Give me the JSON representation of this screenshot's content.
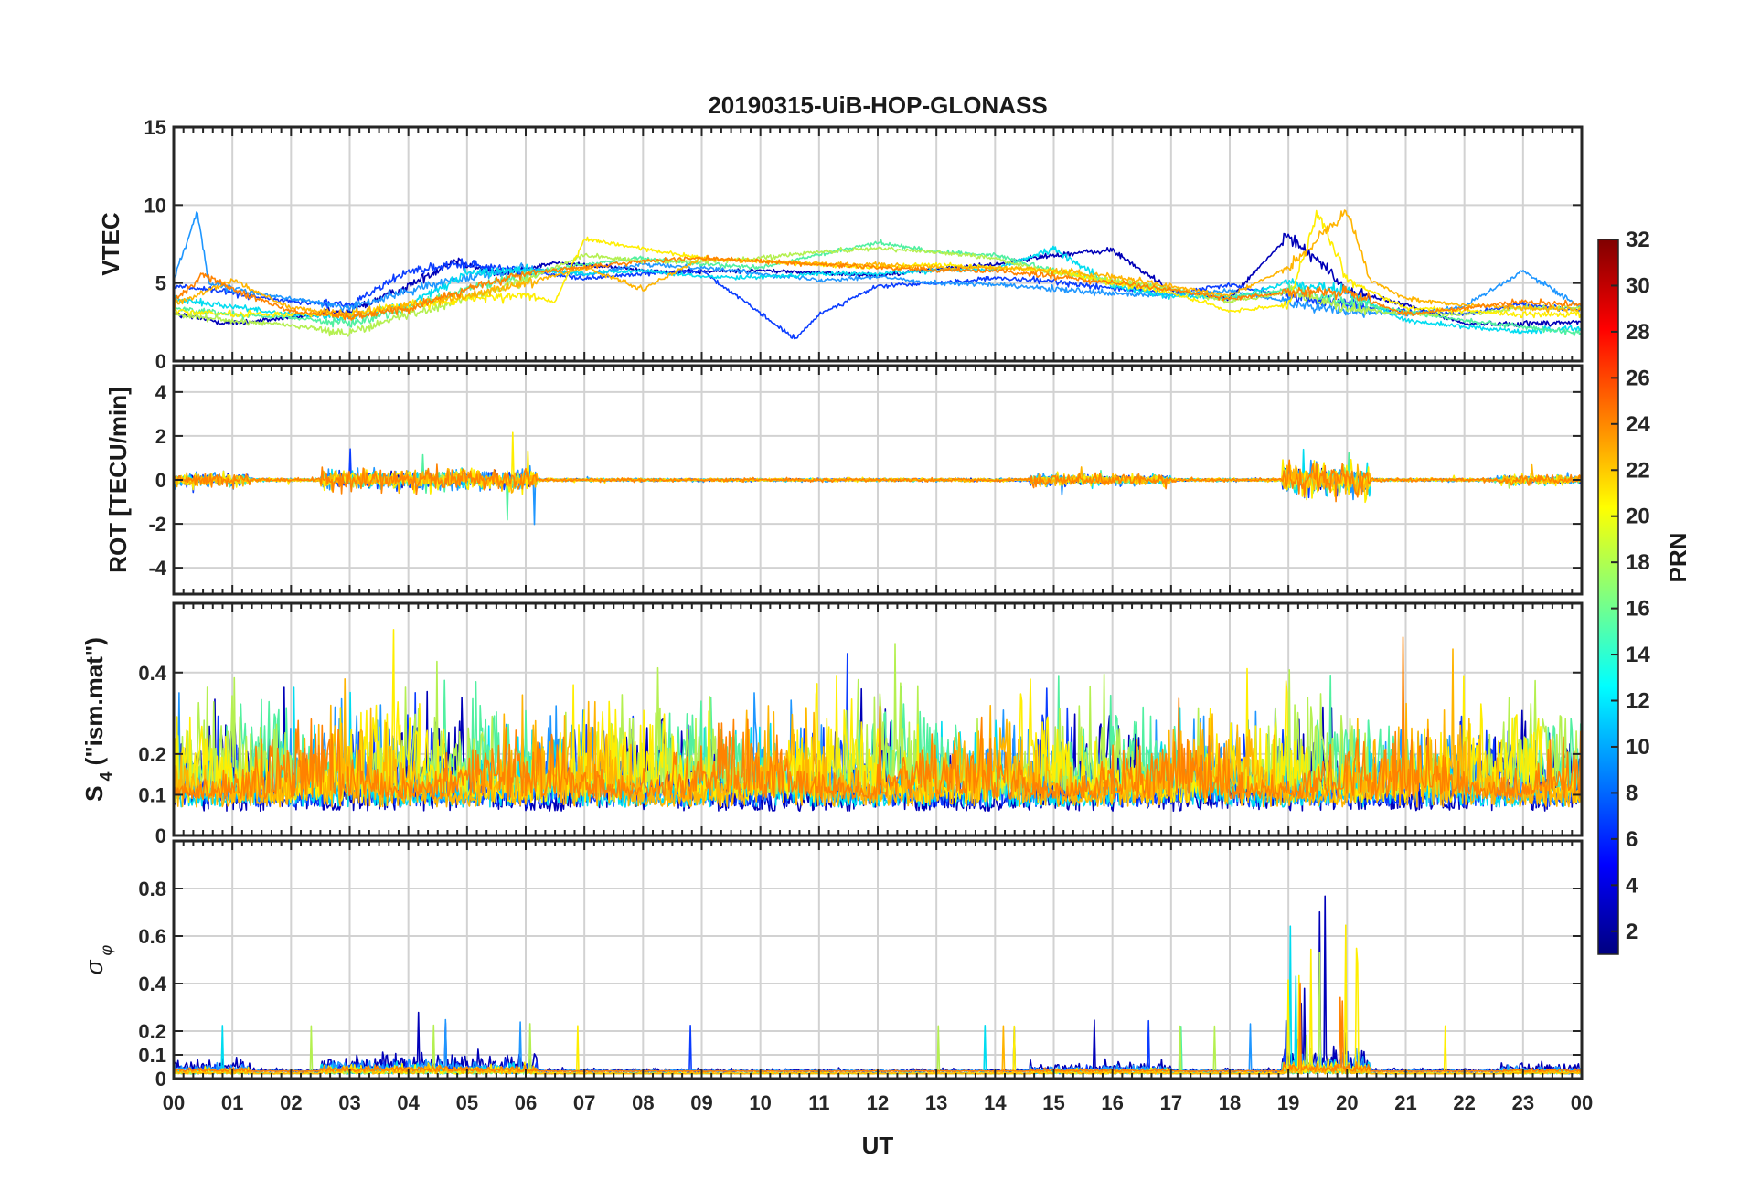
{
  "chart_data": {
    "type": "line",
    "title": "20190315-UiB-HOP-GLONASS",
    "xlabel": "UT",
    "x_ticks": [
      "00",
      "01",
      "02",
      "03",
      "04",
      "05",
      "06",
      "07",
      "08",
      "09",
      "10",
      "11",
      "12",
      "13",
      "14",
      "15",
      "16",
      "17",
      "18",
      "19",
      "20",
      "21",
      "22",
      "23",
      "00"
    ],
    "xlim": [
      0,
      24
    ],
    "grid": true,
    "panels": [
      {
        "name": "vtec",
        "ylabel": "VTEC",
        "ylim": [
          0,
          15
        ],
        "y_ticks": [
          "0",
          "5",
          "10",
          "15"
        ],
        "y_tick_values": [
          0,
          5,
          10,
          15
        ]
      },
      {
        "name": "rot",
        "ylabel": "ROT [TECU/min]",
        "ylim": [
          -5.2,
          5.2
        ],
        "y_ticks": [
          "-4",
          "-2",
          "0",
          "2",
          "4"
        ],
        "y_tick_values": [
          -4,
          -2,
          0,
          2,
          4
        ]
      },
      {
        "name": "s4",
        "ylabel_main": "S",
        "ylabel_sub": "4",
        "ylabel_rest": " (\"ism.mat\")",
        "ylim": [
          0,
          0.57
        ],
        "y_ticks": [
          "0",
          "0.1",
          "0.2",
          "0.4"
        ],
        "y_tick_values": [
          0,
          0.1,
          0.2,
          0.4
        ]
      },
      {
        "name": "sigma_phi",
        "ylabel_main": "σ",
        "ylabel_sub": "φ",
        "ylim": [
          0,
          1.0
        ],
        "y_ticks": [
          "0",
          "0.1",
          "0.2",
          "0.4",
          "0.6",
          "0.8"
        ],
        "y_tick_values": [
          0,
          0.1,
          0.2,
          0.4,
          0.6,
          0.8
        ]
      }
    ],
    "colorbar": {
      "label": "PRN",
      "range": [
        1,
        32
      ],
      "ticks": [
        "2",
        "4",
        "6",
        "8",
        "10",
        "12",
        "14",
        "16",
        "18",
        "20",
        "22",
        "24",
        "26",
        "28",
        "30",
        "32"
      ],
      "tick_values": [
        2,
        4,
        6,
        8,
        10,
        12,
        14,
        16,
        18,
        20,
        22,
        24,
        26,
        28,
        30,
        32
      ],
      "colormap": "jet"
    },
    "series": [
      {
        "prn": 2,
        "color": "#0000b8",
        "vtec_knots": [
          [
            0,
            3.0
          ],
          [
            1,
            2.4
          ],
          [
            2,
            2.8
          ],
          [
            3,
            3.2
          ],
          [
            4,
            4.8
          ],
          [
            4.8,
            6.5
          ],
          [
            5.5,
            5.6
          ],
          [
            6.5,
            6.3
          ],
          [
            7.5,
            6.0
          ],
          [
            8.5,
            5.7
          ],
          [
            10,
            5.8
          ],
          [
            12,
            5.5
          ],
          [
            13,
            5.9
          ],
          [
            14,
            6.2
          ],
          [
            15,
            6.8
          ],
          [
            16,
            7.1
          ],
          [
            17,
            4.5
          ],
          [
            18,
            4.0
          ],
          [
            19,
            8.0
          ],
          [
            19.5,
            6.5
          ],
          [
            20,
            4.5
          ],
          [
            21,
            3.6
          ],
          [
            22,
            2.4
          ],
          [
            23,
            2.4
          ],
          [
            24,
            2.5
          ]
        ],
        "rot_amp": 0.25,
        "s4_base": 0.06,
        "s4_act": 0.18,
        "sp_base": 0.03,
        "sp_act": 0.1
      },
      {
        "prn": 5,
        "color": "#0a3cff",
        "vtec_knots": [
          [
            0,
            4.8
          ],
          [
            1,
            4.4
          ],
          [
            2,
            3.8
          ],
          [
            3,
            3.6
          ],
          [
            4,
            5.8
          ],
          [
            5,
            6.2
          ],
          [
            6,
            5.8
          ],
          [
            7,
            5.3
          ],
          [
            8,
            5.6
          ],
          [
            9,
            5.8
          ],
          [
            10.6,
            1.4
          ],
          [
            11,
            3.0
          ],
          [
            12,
            4.8
          ],
          [
            13,
            5.0
          ],
          [
            14,
            5.3
          ],
          [
            15,
            5.1
          ],
          [
            16,
            4.7
          ],
          [
            17,
            4.3
          ],
          [
            18,
            4.9
          ],
          [
            19,
            4.2
          ],
          [
            20,
            3.6
          ],
          [
            21,
            3.2
          ],
          [
            22,
            3.0
          ],
          [
            23,
            3.6
          ],
          [
            24,
            3.3
          ]
        ],
        "rot_amp": 0.3,
        "s4_base": 0.07,
        "s4_act": 0.15,
        "sp_base": 0.02,
        "sp_act": 0.07
      },
      {
        "prn": 9,
        "color": "#1e96ff",
        "vtec_knots": [
          [
            0,
            5.2
          ],
          [
            0.4,
            9.6
          ],
          [
            0.6,
            5.0
          ],
          [
            1,
            4.6
          ],
          [
            2,
            4.0
          ],
          [
            3,
            3.4
          ],
          [
            4,
            4.5
          ],
          [
            5,
            5.4
          ],
          [
            6,
            6.0
          ],
          [
            7,
            5.5
          ],
          [
            8,
            6.2
          ],
          [
            9,
            6.0
          ],
          [
            10,
            5.6
          ],
          [
            11,
            5.2
          ],
          [
            12,
            5.4
          ],
          [
            13,
            5.0
          ],
          [
            14,
            4.9
          ],
          [
            15,
            4.6
          ],
          [
            16,
            4.3
          ],
          [
            17,
            4.2
          ],
          [
            18,
            4.5
          ],
          [
            19,
            3.8
          ],
          [
            20,
            3.2
          ],
          [
            21,
            3.0
          ],
          [
            22,
            3.5
          ],
          [
            23,
            5.8
          ],
          [
            24,
            3.4
          ]
        ],
        "rot_amp": 0.35,
        "s4_base": 0.08,
        "s4_act": 0.16,
        "sp_base": 0.03,
        "sp_act": 0.06
      },
      {
        "prn": 12,
        "color": "#00dcf0",
        "vtec_knots": [
          [
            0,
            4.0
          ],
          [
            1,
            3.5
          ],
          [
            2,
            3.0
          ],
          [
            3,
            2.8
          ],
          [
            4,
            3.6
          ],
          [
            5,
            5.6
          ],
          [
            6,
            5.9
          ],
          [
            7,
            5.6
          ],
          [
            8,
            5.8
          ],
          [
            9,
            5.4
          ],
          [
            10,
            5.4
          ],
          [
            11,
            5.6
          ],
          [
            12,
            5.6
          ],
          [
            13,
            5.8
          ],
          [
            14,
            5.9
          ],
          [
            15,
            7.2
          ],
          [
            16,
            4.8
          ],
          [
            17,
            4.2
          ],
          [
            18,
            4.0
          ],
          [
            19,
            5.0
          ],
          [
            20,
            4.4
          ],
          [
            21,
            2.6
          ],
          [
            22,
            2.2
          ],
          [
            23,
            1.9
          ],
          [
            24,
            2.1
          ]
        ],
        "rot_amp": 0.3,
        "s4_base": 0.07,
        "s4_act": 0.14,
        "sp_base": 0.02,
        "sp_act": 0.05
      },
      {
        "prn": 15,
        "color": "#50f0a0",
        "vtec_knots": [
          [
            0,
            3.4
          ],
          [
            1,
            3.0
          ],
          [
            2,
            2.8
          ],
          [
            3,
            2.4
          ],
          [
            4,
            3.4
          ],
          [
            5,
            4.6
          ],
          [
            6,
            5.6
          ],
          [
            7,
            6.2
          ],
          [
            8,
            6.6
          ],
          [
            9,
            6.2
          ],
          [
            10,
            6.0
          ],
          [
            11,
            6.8
          ],
          [
            12,
            7.6
          ],
          [
            13,
            7.0
          ],
          [
            14,
            6.8
          ],
          [
            15,
            5.8
          ],
          [
            16,
            5.0
          ],
          [
            17,
            4.6
          ],
          [
            18,
            4.1
          ],
          [
            19,
            4.6
          ],
          [
            20,
            3.8
          ],
          [
            21,
            3.2
          ],
          [
            22,
            2.6
          ],
          [
            23,
            2.2
          ],
          [
            24,
            1.8
          ]
        ],
        "rot_amp": 0.25,
        "s4_base": 0.1,
        "s4_act": 0.16,
        "sp_base": 0.02,
        "sp_act": 0.03
      },
      {
        "prn": 18,
        "color": "#b4f050",
        "vtec_knots": [
          [
            0,
            3.0
          ],
          [
            1,
            2.6
          ],
          [
            2,
            2.3
          ],
          [
            3,
            1.8
          ],
          [
            4,
            3.0
          ],
          [
            5,
            4.0
          ],
          [
            6,
            5.2
          ],
          [
            7,
            6.8
          ],
          [
            8,
            6.4
          ],
          [
            9,
            6.4
          ],
          [
            10,
            6.6
          ],
          [
            11,
            7.0
          ],
          [
            12,
            7.2
          ],
          [
            13,
            7.0
          ],
          [
            14,
            6.6
          ],
          [
            15,
            5.6
          ],
          [
            16,
            5.2
          ],
          [
            17,
            4.6
          ],
          [
            18,
            3.8
          ],
          [
            19,
            4.4
          ],
          [
            20,
            3.4
          ],
          [
            21,
            3.0
          ],
          [
            22,
            3.0
          ],
          [
            23,
            3.4
          ],
          [
            24,
            3.4
          ]
        ],
        "rot_amp": 0.2,
        "s4_base": 0.1,
        "s4_act": 0.18,
        "sp_base": 0.02,
        "sp_act": 0.03
      },
      {
        "prn": 20,
        "color": "#ffee00",
        "vtec_knots": [
          [
            0,
            3.2
          ],
          [
            1,
            3.0
          ],
          [
            2,
            3.0
          ],
          [
            3,
            3.0
          ],
          [
            4,
            3.6
          ],
          [
            5,
            4.0
          ],
          [
            6,
            4.2
          ],
          [
            6.5,
            3.8
          ],
          [
            7,
            7.8
          ],
          [
            8,
            7.2
          ],
          [
            9,
            6.6
          ],
          [
            10,
            6.4
          ],
          [
            11,
            6.2
          ],
          [
            12,
            6.0
          ],
          [
            13,
            6.2
          ],
          [
            14,
            6.0
          ],
          [
            15,
            5.8
          ],
          [
            16,
            5.0
          ],
          [
            17,
            4.4
          ],
          [
            18,
            3.2
          ],
          [
            19,
            3.6
          ],
          [
            19.5,
            9.6
          ],
          [
            20,
            5.2
          ],
          [
            21,
            3.4
          ],
          [
            22,
            3.2
          ],
          [
            23,
            3.0
          ],
          [
            24,
            3.0
          ]
        ],
        "rot_amp": 0.4,
        "s4_base": 0.08,
        "s4_act": 0.2,
        "sp_base": 0.02,
        "sp_act": 0.05
      },
      {
        "prn": 22,
        "color": "#ffb400",
        "vtec_knots": [
          [
            0,
            3.6
          ],
          [
            1,
            5.2
          ],
          [
            2,
            3.4
          ],
          [
            3,
            3.0
          ],
          [
            4,
            3.6
          ],
          [
            5,
            4.2
          ],
          [
            6,
            5.0
          ],
          [
            7,
            6.0
          ],
          [
            8,
            4.6
          ],
          [
            9,
            6.6
          ],
          [
            10,
            6.4
          ],
          [
            11,
            6.2
          ],
          [
            12,
            6.2
          ],
          [
            13,
            6.0
          ],
          [
            14,
            6.0
          ],
          [
            15,
            5.8
          ],
          [
            16,
            5.4
          ],
          [
            17,
            4.8
          ],
          [
            18,
            4.2
          ],
          [
            19,
            6.0
          ],
          [
            20,
            9.6
          ],
          [
            20.4,
            5.2
          ],
          [
            21,
            4.0
          ],
          [
            22,
            3.6
          ],
          [
            23,
            3.4
          ],
          [
            24,
            3.3
          ]
        ],
        "rot_amp": 0.35,
        "s4_base": 0.07,
        "s4_act": 0.18,
        "sp_base": 0.02,
        "sp_act": 0.04
      },
      {
        "prn": 24,
        "color": "#ff8200",
        "vtec_knots": [
          [
            0,
            3.8
          ],
          [
            0.5,
            5.6
          ],
          [
            1,
            4.6
          ],
          [
            2,
            3.2
          ],
          [
            3,
            2.8
          ],
          [
            4,
            3.4
          ],
          [
            5,
            4.6
          ],
          [
            6,
            5.6
          ],
          [
            7,
            6.0
          ],
          [
            8,
            6.4
          ],
          [
            9,
            6.6
          ],
          [
            10,
            6.4
          ],
          [
            11,
            6.2
          ],
          [
            12,
            6.0
          ],
          [
            13,
            5.8
          ],
          [
            14,
            5.8
          ],
          [
            15,
            5.4
          ],
          [
            16,
            5.0
          ],
          [
            17,
            4.6
          ],
          [
            18,
            4.0
          ],
          [
            19,
            4.4
          ],
          [
            20,
            4.4
          ],
          [
            21,
            3.0
          ],
          [
            22,
            3.4
          ],
          [
            23,
            3.8
          ],
          [
            24,
            3.6
          ]
        ],
        "rot_amp": 0.4,
        "s4_base": 0.09,
        "s4_act": 0.14,
        "sp_base": 0.03,
        "sp_act": 0.03
      }
    ]
  }
}
